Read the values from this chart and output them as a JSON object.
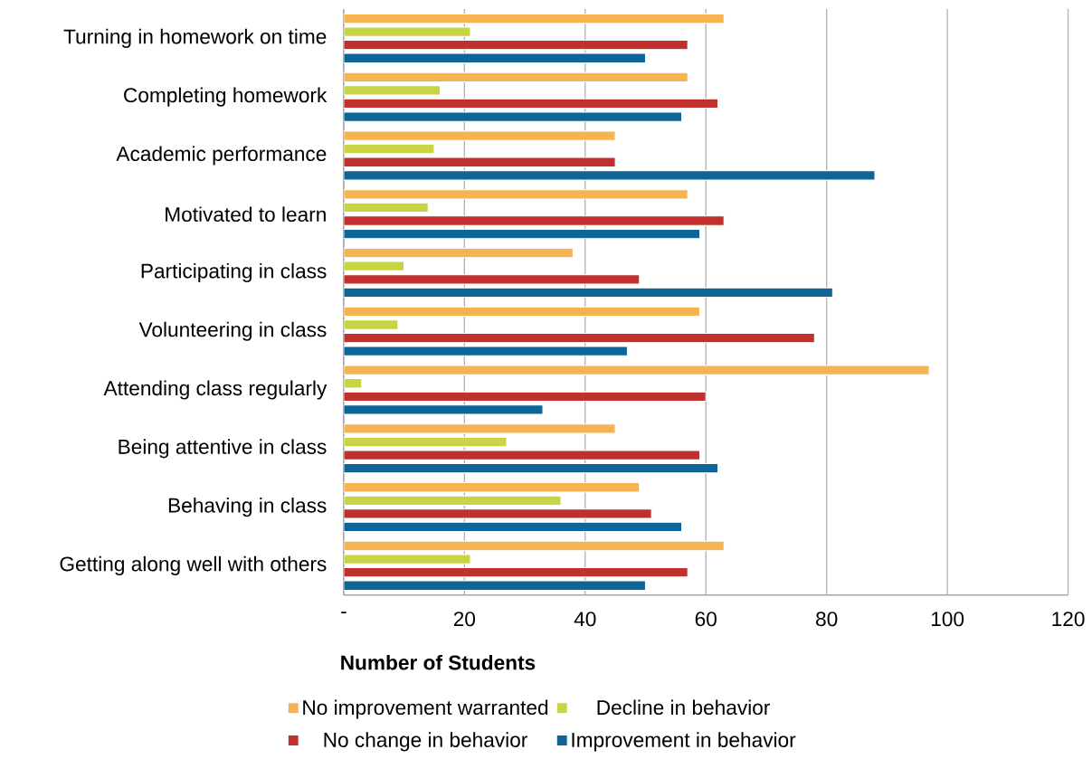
{
  "chart_data": {
    "type": "bar",
    "orientation": "horizontal",
    "xlabel": "Number of Students",
    "categories": [
      "Turning in homework on time",
      "Completing homework",
      "Academic performance",
      "Motivated to learn",
      "Participating in class",
      "Volunteering in class",
      "Attending class regularly",
      "Being attentive in class",
      "Behaving in class",
      "Getting along well with others"
    ],
    "series": [
      {
        "name": "No improvement warranted",
        "color": "#f6b352",
        "values": [
          63,
          57,
          45,
          57,
          38,
          59,
          97,
          45,
          49,
          63
        ]
      },
      {
        "name": "Decline in behavior",
        "color": "#c9d444",
        "values": [
          21,
          16,
          15,
          14,
          10,
          9,
          3,
          27,
          36,
          21
        ]
      },
      {
        "name": "No change in behavior",
        "color": "#c0302c",
        "values": [
          57,
          62,
          45,
          63,
          49,
          78,
          60,
          59,
          51,
          57
        ]
      },
      {
        "name": "Improvement in behavior",
        "color": "#0e6598",
        "values": [
          50,
          56,
          88,
          59,
          81,
          47,
          33,
          62,
          56,
          50
        ]
      }
    ],
    "xlim": [
      0,
      120
    ],
    "xticks": [
      {
        "value": 0,
        "label": "-"
      },
      20,
      40,
      60,
      80,
      100,
      120
    ],
    "grid": "x",
    "legend": "bottom"
  }
}
